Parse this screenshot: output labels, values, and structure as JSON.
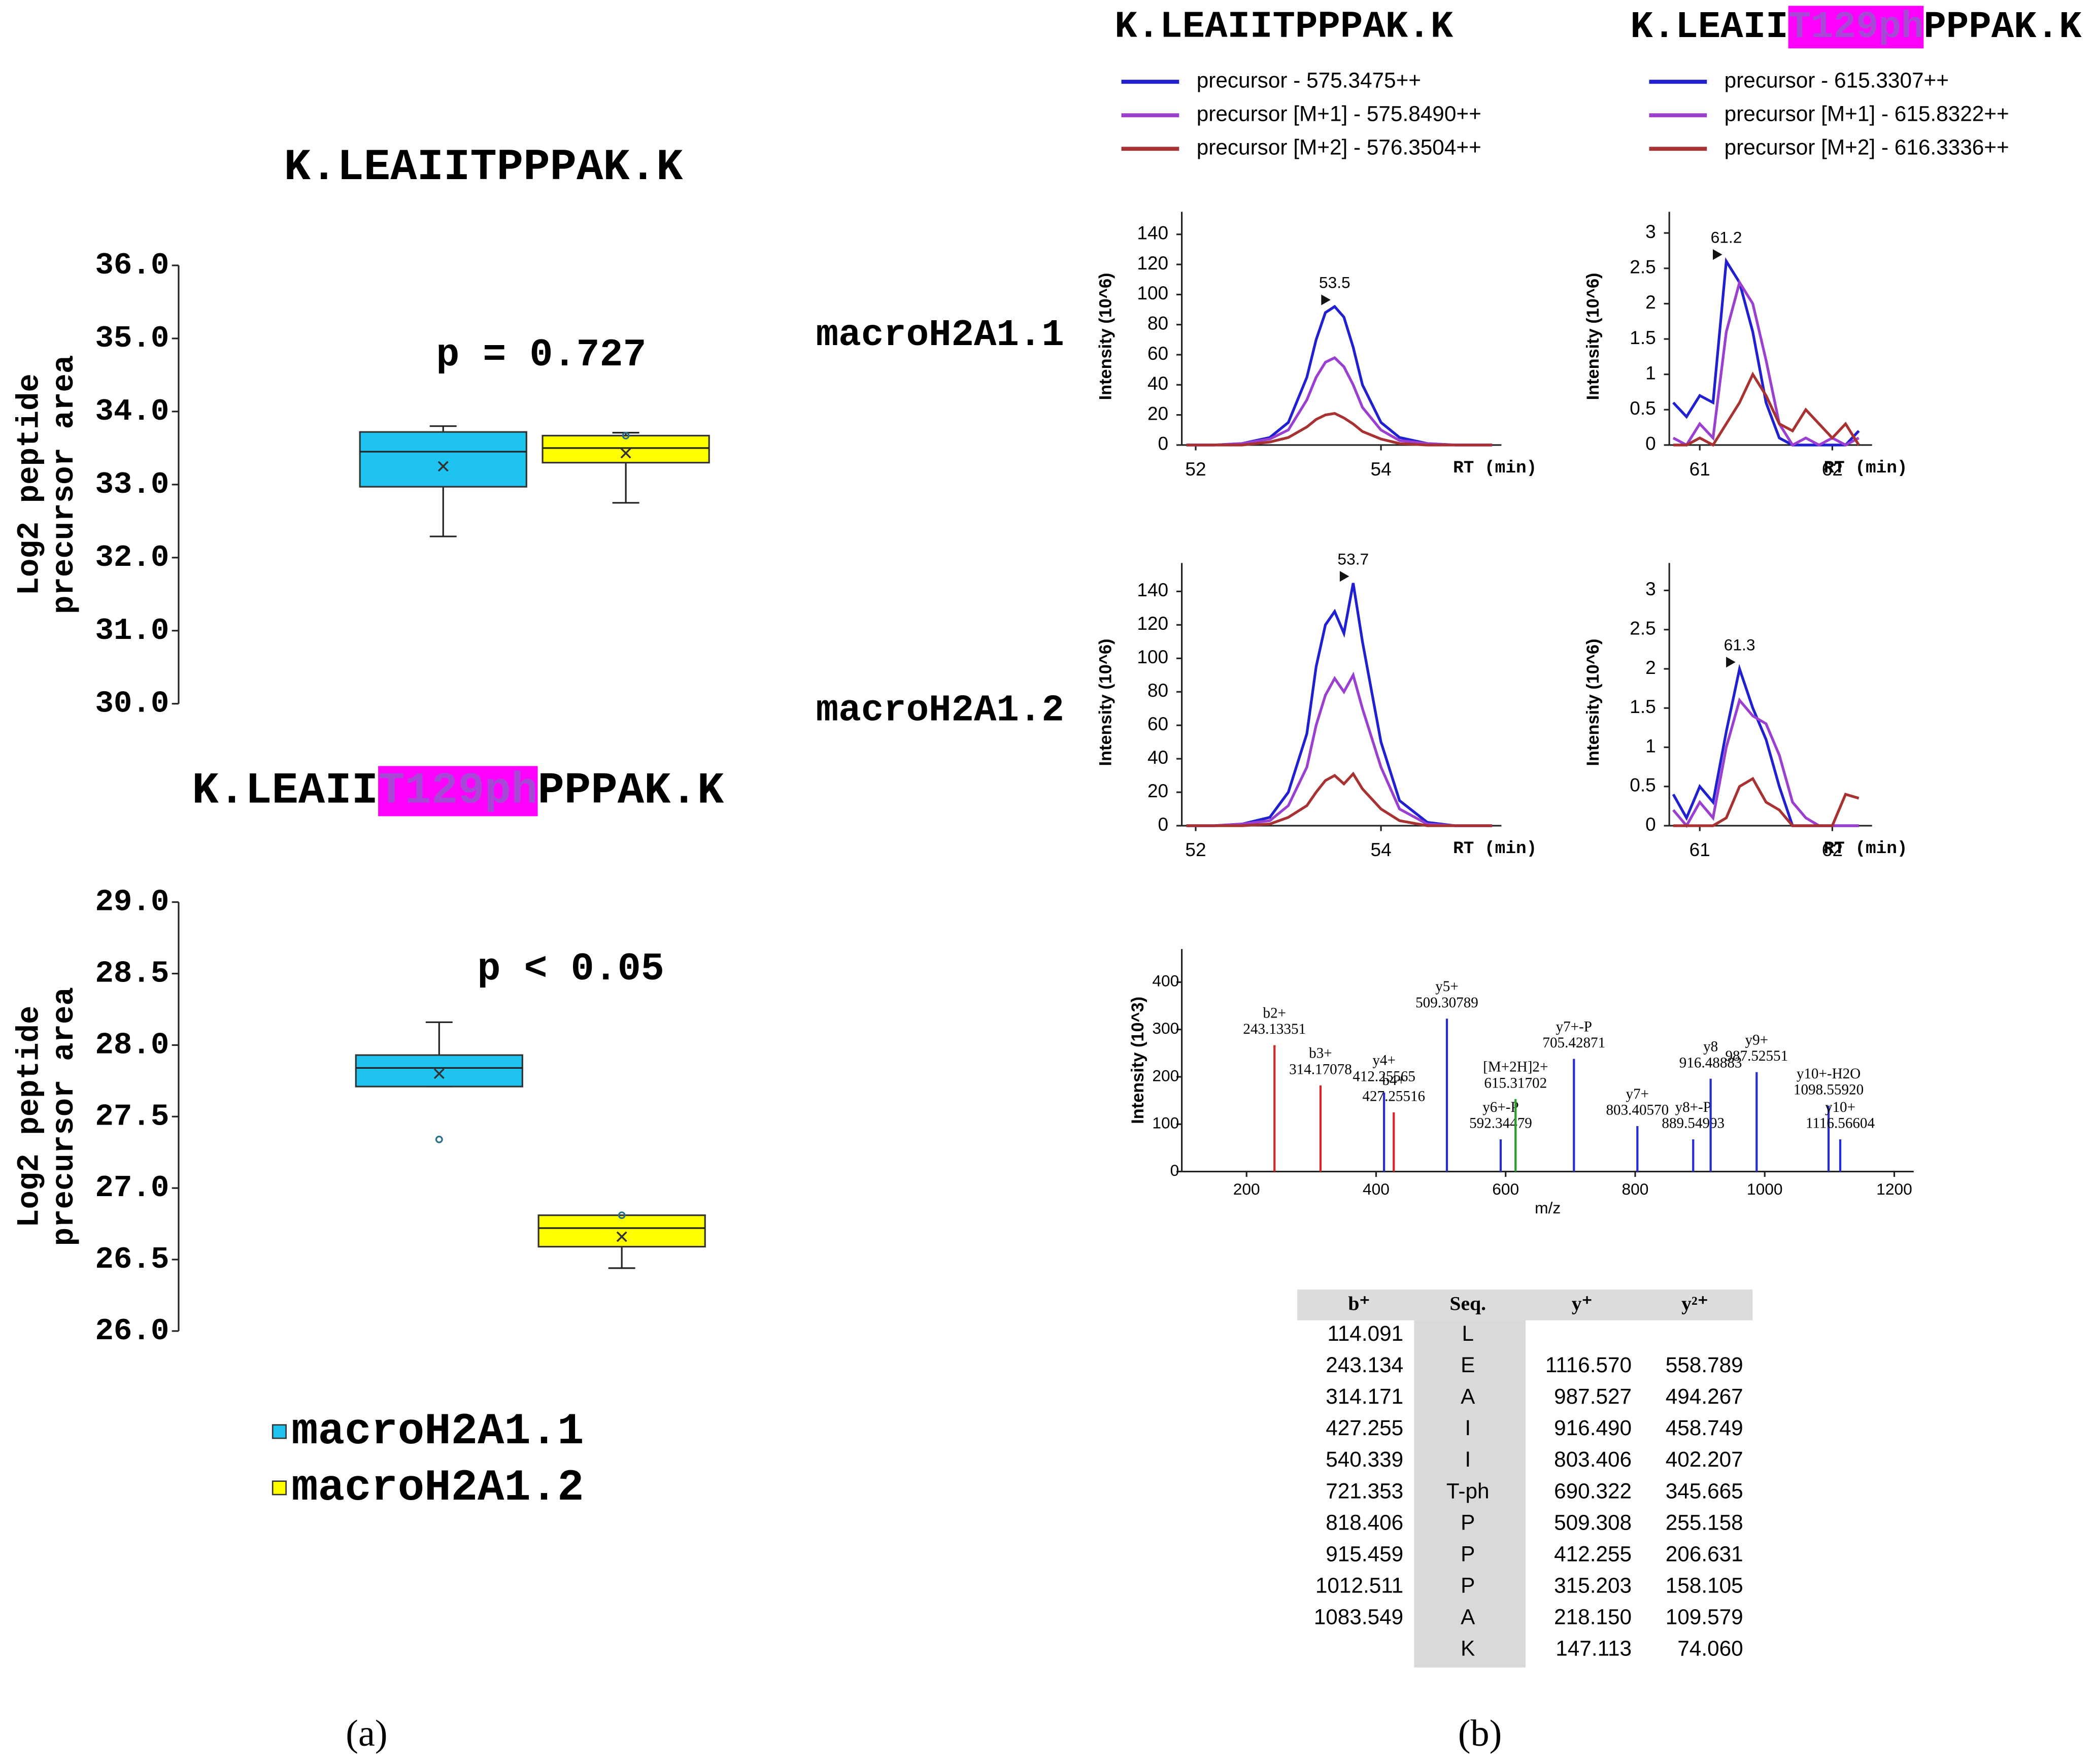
{
  "figure": {
    "panel_labels": [
      "(a)",
      "(b)"
    ],
    "row_labels": [
      "macroH2A1.1",
      "macroH2A1.2"
    ]
  },
  "chart_data": [
    {
      "type": "box",
      "title": "K.LEAIITPPPAK.K",
      "ylabel": [
        "Log2 peptide",
        "precursor area"
      ],
      "annotation": "p = 0.727",
      "ylim": [
        30,
        36
      ],
      "yticks": [
        {
          "value": 30,
          "label": "30.0"
        },
        {
          "value": 31,
          "label": "31.0"
        },
        {
          "value": 32,
          "label": "32.0"
        },
        {
          "value": 33,
          "label": "33.0"
        },
        {
          "value": 34,
          "label": "34.0"
        },
        {
          "value": 35,
          "label": "35.0"
        },
        {
          "value": 36,
          "label": "36.0"
        }
      ],
      "series": [
        {
          "color": "#1ec3f0",
          "min": 32.29,
          "q1": 32.97,
          "median": 33.45,
          "q3": 33.72,
          "max": 33.8,
          "mean": 33.25,
          "points": []
        },
        {
          "color": "#ffff00",
          "min": 32.75,
          "q1": 33.3,
          "median": 33.5,
          "q3": 33.67,
          "max": 33.71,
          "mean": 33.43,
          "points": [
            33.67
          ]
        }
      ]
    },
    {
      "type": "box",
      "title": [
        "K.LEAII",
        "T129ph",
        "PPPAK.K"
      ],
      "highlight": {
        "part": 1,
        "background": "#ff00ff",
        "color": "#a64ad6"
      },
      "ylabel": [
        "Log2 peptide",
        "precursor area"
      ],
      "annotation": "p < 0.05",
      "legend": true,
      "ylim": [
        26,
        29
      ],
      "yticks": [
        {
          "value": 26,
          "label": "26.0"
        },
        26.5,
        {
          "value": 27,
          "label": "27.0"
        },
        27.5,
        {
          "value": 28,
          "label": "28.0"
        },
        28.5,
        {
          "value": 29,
          "label": "29.0"
        }
      ],
      "series": [
        {
          "name": "macroH2A1.1",
          "color": "#1ec3f0",
          "min": 27.71,
          "q1": 27.71,
          "median": 27.84,
          "q3": 27.93,
          "max": 28.16,
          "mean": 27.8,
          "points": [
            27.34
          ]
        },
        {
          "name": "macroH2A1.2",
          "color": "#ffff00",
          "min": 26.44,
          "q1": 26.59,
          "median": 26.72,
          "q3": 26.81,
          "max": 26.81,
          "mean": 26.66,
          "points": [
            26.81
          ]
        }
      ]
    },
    {
      "type": "line",
      "title": "K.LEAIITPPPAK.K",
      "legend": true,
      "ylabel": "Intensity (10^6)",
      "xlabel": "RT (min)",
      "peak": 53.5,
      "xlim": [
        51.85,
        55.3
      ],
      "xticks": [
        52,
        54
      ],
      "ylim": [
        0,
        155
      ],
      "yticks": [
        0,
        20,
        40,
        60,
        80,
        100,
        120,
        140
      ],
      "x": [
        51.9,
        52.2,
        52.5,
        52.8,
        53.0,
        53.2,
        53.3,
        53.4,
        53.5,
        53.6,
        53.7,
        53.8,
        54.0,
        54.2,
        54.5,
        54.8,
        55.2
      ],
      "series": [
        {
          "name": "precursor - 575.3475++",
          "color": "#2020d0",
          "values": [
            0,
            0,
            1,
            5,
            15,
            45,
            70,
            88,
            92,
            85,
            65,
            40,
            15,
            5,
            1,
            0,
            0
          ]
        },
        {
          "name": "precursor [M+1] - 575.8490++",
          "color": "#9a3fd0",
          "values": [
            0,
            0,
            1,
            4,
            10,
            30,
            45,
            55,
            58,
            52,
            40,
            25,
            10,
            3,
            1,
            0,
            0
          ]
        },
        {
          "name": "precursor [M+2] - 576.3504++",
          "color": "#a83232",
          "values": [
            0,
            0,
            0,
            2,
            5,
            12,
            17,
            20,
            21,
            18,
            14,
            9,
            4,
            1,
            0,
            0,
            0
          ]
        }
      ]
    },
    {
      "type": "line",
      "title": [
        "K.LEAII",
        "T129ph",
        "PPPAK.K"
      ],
      "highlight": {
        "part": 1,
        "background": "#ff00ff",
        "color": "#a64ad6"
      },
      "legend": true,
      "ylabel": "Intensity (10^6)",
      "xlabel": "RT (min)",
      "peak": 61.2,
      "xlim": [
        60.77,
        62.3
      ],
      "xticks": [
        61,
        62
      ],
      "ylim": [
        0,
        3.3
      ],
      "yticks": [
        0,
        0.5,
        1,
        1.5,
        2,
        2.5,
        3
      ],
      "x": [
        60.8,
        60.9,
        61.0,
        61.1,
        61.2,
        61.3,
        61.4,
        61.5,
        61.6,
        61.7,
        61.8,
        61.9,
        62.0,
        62.1,
        62.2
      ],
      "series": [
        {
          "name": "precursor - 615.3307++",
          "color": "#2020d0",
          "values": [
            0.6,
            0.4,
            0.7,
            0.6,
            2.6,
            2.3,
            1.6,
            0.6,
            0.1,
            0,
            0,
            0,
            0,
            0,
            0.2
          ]
        },
        {
          "name": "precursor [M+1] - 615.8322++",
          "color": "#9a3fd0",
          "values": [
            0.1,
            0,
            0.3,
            0.1,
            1.6,
            2.3,
            2.0,
            1.2,
            0.3,
            0,
            0.1,
            0,
            0.1,
            0,
            0.1
          ]
        },
        {
          "name": "precursor [M+2] - 616.3336++",
          "color": "#a83232",
          "values": [
            0,
            0,
            0.1,
            0,
            0.3,
            0.6,
            1.0,
            0.7,
            0.3,
            0.2,
            0.5,
            0.3,
            0.1,
            0.3,
            0
          ]
        }
      ]
    },
    {
      "type": "line",
      "ylabel": "Intensity (10^6)",
      "xlabel": "RT (min)",
      "peak": 53.7,
      "xlim": [
        51.85,
        55.3
      ],
      "xticks": [
        52,
        54
      ],
      "ylim": [
        0,
        157
      ],
      "yticks": [
        0,
        20,
        40,
        60,
        80,
        100,
        120,
        140
      ],
      "x": [
        51.9,
        52.2,
        52.5,
        52.8,
        53.0,
        53.2,
        53.3,
        53.4,
        53.5,
        53.6,
        53.7,
        53.8,
        54.0,
        54.2,
        54.5,
        54.8,
        55.2
      ],
      "series": [
        {
          "color": "#2020d0",
          "values": [
            0,
            0,
            1,
            5,
            20,
            55,
            95,
            120,
            128,
            115,
            145,
            110,
            50,
            15,
            2,
            0,
            0
          ]
        },
        {
          "color": "#9a3fd0",
          "values": [
            0,
            0,
            1,
            3,
            12,
            35,
            60,
            78,
            88,
            80,
            90,
            70,
            35,
            10,
            1,
            0,
            0
          ]
        },
        {
          "color": "#a83232",
          "values": [
            0,
            0,
            0,
            1,
            5,
            12,
            20,
            27,
            30,
            25,
            31,
            22,
            10,
            3,
            0,
            0,
            0
          ]
        }
      ]
    },
    {
      "type": "line",
      "ylabel": "Intensity (10^6)",
      "xlabel": "RT (min)",
      "peak": 61.3,
      "xlim": [
        60.77,
        62.3
      ],
      "xticks": [
        61,
        62
      ],
      "ylim": [
        0,
        3.35
      ],
      "yticks": [
        0,
        0.5,
        1,
        1.5,
        2,
        2.5,
        3
      ],
      "x": [
        60.8,
        60.9,
        61.0,
        61.1,
        61.2,
        61.3,
        61.4,
        61.5,
        61.6,
        61.7,
        61.8,
        61.9,
        62.0,
        62.1,
        62.2
      ],
      "series": [
        {
          "color": "#2020d0",
          "values": [
            0.4,
            0.1,
            0.5,
            0.3,
            1.2,
            2.0,
            1.5,
            1.1,
            0.5,
            0,
            0,
            0,
            0,
            0,
            0
          ]
        },
        {
          "color": "#9a3fd0",
          "values": [
            0.2,
            0,
            0.3,
            0.1,
            1.0,
            1.6,
            1.4,
            1.3,
            0.9,
            0.3,
            0.1,
            0,
            0,
            0,
            0
          ]
        },
        {
          "color": "#a83232",
          "values": [
            0,
            0,
            0,
            0,
            0.1,
            0.5,
            0.6,
            0.3,
            0.2,
            0,
            0,
            0,
            0,
            0.4,
            0.35
          ]
        }
      ]
    },
    {
      "type": "stem",
      "ylabel": "Intensity (10^3)",
      "xlabel": "m/z",
      "xlim": [
        100,
        1230
      ],
      "xticks": [
        200,
        400,
        600,
        800,
        1000,
        1200
      ],
      "ylim": [
        0,
        470
      ],
      "yticks": [
        0,
        100,
        200,
        300,
        400
      ],
      "peaks": [
        {
          "ion": "b2+",
          "mz": 243.13351,
          "mz_label": "243.13351",
          "intensity": 267,
          "color": "#d62728"
        },
        {
          "ion": "b3+",
          "mz": 314.17078,
          "mz_label": "314.17078",
          "intensity": 182,
          "color": "#d62728"
        },
        {
          "ion": "y4+",
          "mz": 412.25565,
          "mz_label": "412.25565",
          "intensity": 167,
          "color": "#2b2bd6"
        },
        {
          "ion": "b4+",
          "mz": 427.25516,
          "mz_label": "427.25516",
          "intensity": 125,
          "color": "#d62728"
        },
        {
          "ion": "y5+",
          "mz": 509.30789,
          "mz_label": "509.30789",
          "intensity": 323,
          "color": "#2b2bd6"
        },
        {
          "ion": "y6+-P",
          "mz": 592.34479,
          "mz_label": "592.34479",
          "intensity": 68,
          "color": "#2b2bd6"
        },
        {
          "ion": "[M+2H]2+",
          "mz": 615.31702,
          "mz_label": "615.31702",
          "intensity": 153,
          "color": "#2a9d2a"
        },
        {
          "ion": "y7+-P",
          "mz": 705.42871,
          "mz_label": "705.42871",
          "intensity": 238,
          "color": "#2b2bd6"
        },
        {
          "ion": "y7+",
          "mz": 803.4057,
          "mz_label": "803.40570",
          "intensity": 96,
          "color": "#2b2bd6"
        },
        {
          "ion": "y8+-P",
          "mz": 889.54993,
          "mz_label": "889.54993",
          "intensity": 68,
          "color": "#2b2bd6"
        },
        {
          "ion": "y8",
          "mz": 916.48883,
          "mz_label": "916.48883",
          "intensity": 196,
          "color": "#2b2bd6"
        },
        {
          "ion": "y9+",
          "mz": 987.52551,
          "mz_label": "987.52551",
          "intensity": 210,
          "color": "#2b2bd6"
        },
        {
          "ion": "y10+-H2O",
          "mz": 1098.5592,
          "mz_label": "1098.55920",
          "intensity": 139,
          "color": "#2b2bd6"
        },
        {
          "ion": "y10+",
          "mz": 1116.56604,
          "mz_label": "1116.56604",
          "intensity": 68,
          "color": "#2b2bd6"
        }
      ]
    }
  ],
  "table": {
    "header": [
      "b⁺",
      "Seq.",
      "y⁺",
      "y²⁺"
    ],
    "rows": [
      [
        "114.091",
        "L",
        null,
        null
      ],
      [
        "243.134",
        "E",
        "1116.570",
        "558.789"
      ],
      [
        "314.171",
        "A",
        "987.527",
        "494.267"
      ],
      [
        "427.255",
        "I",
        "916.490",
        "458.749"
      ],
      [
        "540.339",
        "I",
        "803.406",
        "402.207"
      ],
      [
        "721.353",
        "T-ph",
        "690.322",
        "345.665"
      ],
      [
        "818.406",
        "P",
        "509.308",
        "255.158"
      ],
      [
        "915.459",
        "P",
        "412.255",
        "206.631"
      ],
      [
        "1012.511",
        "P",
        "315.203",
        "158.105"
      ],
      [
        "1083.549",
        "A",
        "218.150",
        "109.579"
      ],
      [
        null,
        "K",
        "147.113",
        "74.060"
      ]
    ],
    "cell_colors": [
      [
        null,
        null,
        null,
        null
      ],
      [
        "#d62728",
        null,
        "#2b2bd6",
        null
      ],
      [
        "#d62728",
        null,
        "#2b2bd6",
        null
      ],
      [
        "#d62728",
        null,
        "#2b2bd6",
        null
      ],
      [
        null,
        null,
        "#2b2bd6",
        "#2b2bd6"
      ],
      [
        null,
        null,
        "#2b2bd6",
        null
      ],
      [
        null,
        null,
        "#2b2bd6",
        null
      ],
      [
        null,
        null,
        "#2b2bd6",
        null
      ],
      [
        null,
        null,
        "#2b2bd6",
        "#2b2bd6"
      ],
      [
        null,
        null,
        "#2b2bd6",
        null
      ],
      [
        null,
        null,
        "#2b2bd6",
        null
      ]
    ]
  }
}
